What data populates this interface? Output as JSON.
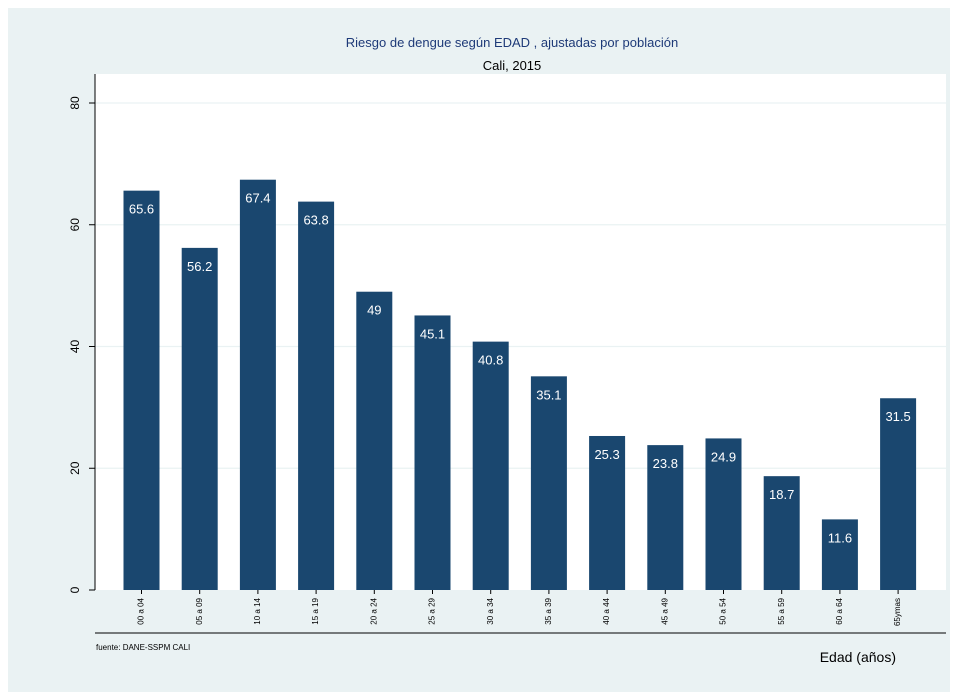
{
  "chart_data": {
    "type": "bar",
    "title": "Riesgo de dengue según EDAD , ajustadas por población",
    "subtitle": "Cali, 2015",
    "xlabel": "Edad (años)",
    "ylabel": "",
    "note": "fuente: DANE-SSPM CALI",
    "categories": [
      "00 a 04",
      "05 a 09",
      "10 a 14",
      "15 a 19",
      "20 a 24",
      "25 a 29",
      "30 a 34",
      "35 a 39",
      "40 a 44",
      "45 a 49",
      "50 a 54",
      "55 a 59",
      "60 a 64",
      "65ymas"
    ],
    "values": [
      65.6,
      56.2,
      67.4,
      63.8,
      49,
      45.1,
      40.8,
      35.1,
      25.3,
      23.8,
      24.9,
      18.7,
      11.6,
      31.5
    ],
    "data_labels": [
      "65.6",
      "56.2",
      "67.4",
      "63.8",
      "49",
      "45.1",
      "40.8",
      "35.1",
      "25.3",
      "23.8",
      "24.9",
      "18.7",
      "11.6",
      "31.5"
    ],
    "yticks": [
      0,
      20,
      40,
      60,
      80
    ],
    "ylim": [
      0,
      80
    ],
    "grid": true,
    "legend": "none",
    "colors": {
      "bar": "#1a476f",
      "background": "#eaf2f3",
      "plot_background": "#ffffff",
      "title": "#1e3a78",
      "label_text": "#ffffff",
      "grid": "#eaf2f3"
    }
  }
}
